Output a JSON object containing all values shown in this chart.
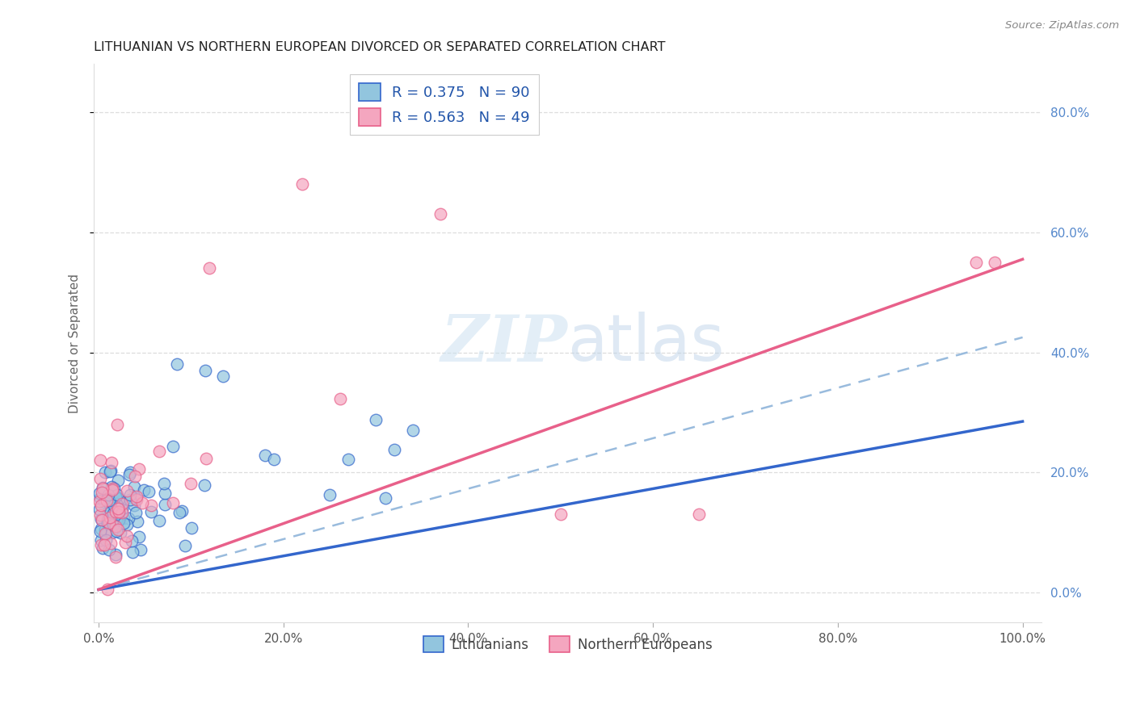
{
  "title": "LITHUANIAN VS NORTHERN EUROPEAN DIVORCED OR SEPARATED CORRELATION CHART",
  "source": "Source: ZipAtlas.com",
  "ylabel": "Divorced or Separated",
  "legend_label1": "Lithuanians",
  "legend_label2": "Northern Europeans",
  "r1": 0.375,
  "n1": 90,
  "r2": 0.563,
  "n2": 49,
  "color1": "#92c5de",
  "color2": "#f4a6bf",
  "trendline1_color": "#3366cc",
  "trendline2_color": "#e8608a",
  "dash_color": "#99bbdd",
  "blue_slope": 0.28,
  "blue_intercept": 0.005,
  "pink_slope": 0.55,
  "pink_intercept": 0.005,
  "dash_slope": 0.42,
  "dash_intercept": 0.005,
  "xlim_min": -0.005,
  "xlim_max": 1.02,
  "ylim_min": -0.05,
  "ylim_max": 0.88,
  "x_ticks": [
    0.0,
    0.2,
    0.4,
    0.6,
    0.8,
    1.0
  ],
  "x_labels": [
    "0.0%",
    "20.0%",
    "40.0%",
    "60.0%",
    "80.0%",
    "100.0%"
  ],
  "y_ticks": [
    0.0,
    0.2,
    0.4,
    0.6,
    0.8
  ],
  "y_labels": [
    "0.0%",
    "20.0%",
    "40.0%",
    "60.0%",
    "80.0%"
  ],
  "grid_color": "#dddddd",
  "tick_color": "#aaaaaa",
  "title_color": "#222222",
  "source_color": "#888888",
  "ylabel_color": "#666666",
  "right_tick_color": "#5588cc",
  "bottom_legend_color": "#444444",
  "watermark_color": "#c8dff0",
  "watermark_alpha": 0.5
}
